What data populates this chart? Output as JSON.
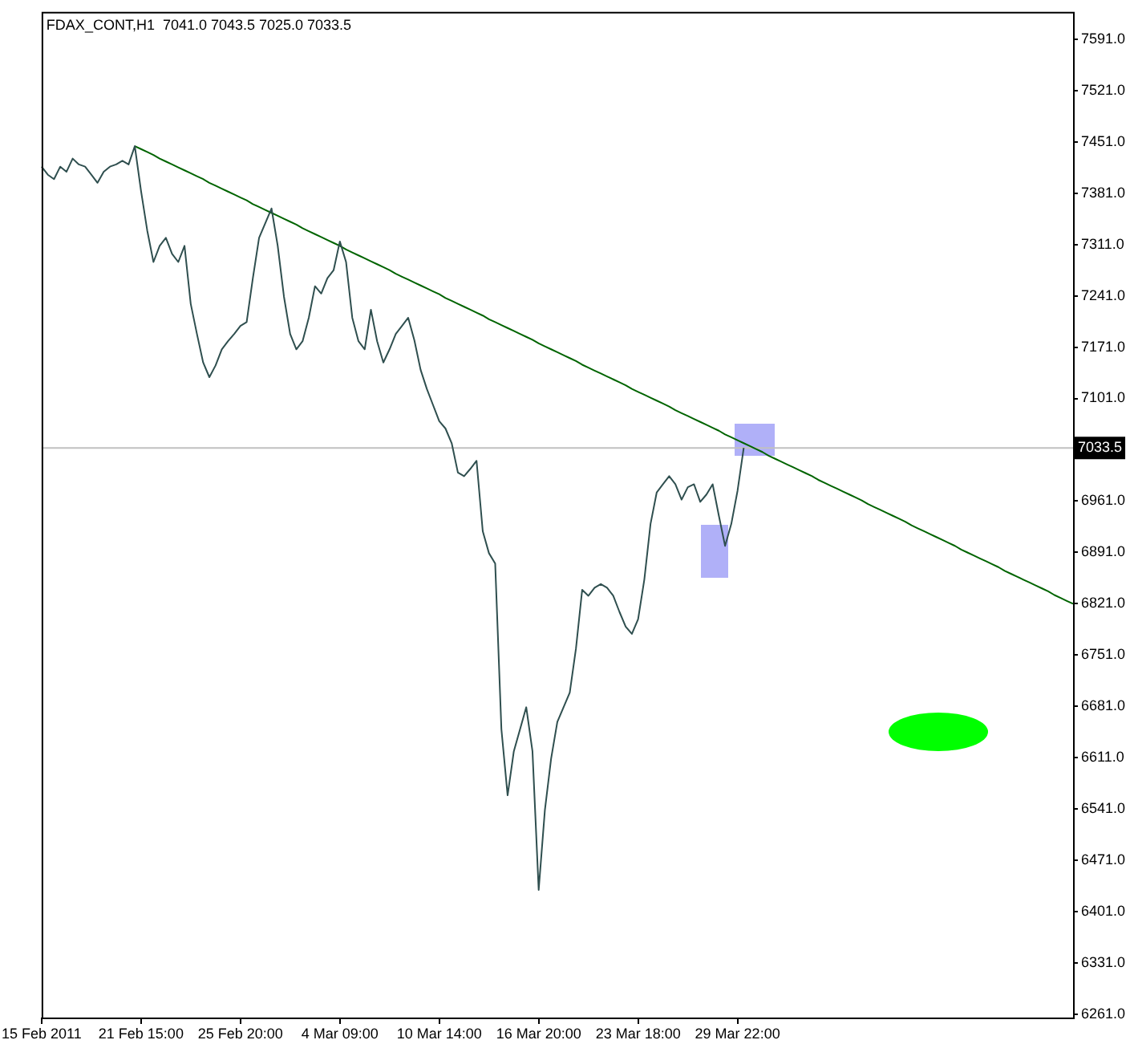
{
  "chart_data": {
    "type": "line",
    "title": "FDAX_CONT,H1  7041.0 7043.5 7025.0 7033.5",
    "marker": "none",
    "categories": [
      "15 Feb 2011",
      null,
      null,
      null,
      null,
      null,
      null,
      null,
      null,
      null,
      null,
      null,
      null,
      null,
      null,
      null,
      "21 Feb 15:00",
      null,
      null,
      null,
      null,
      null,
      null,
      null,
      null,
      null,
      null,
      null,
      null,
      null,
      null,
      null,
      "25 Feb 20:00",
      null,
      null,
      null,
      null,
      null,
      null,
      null,
      null,
      null,
      null,
      null,
      null,
      null,
      null,
      null,
      "4 Mar 09:00",
      null,
      null,
      null,
      null,
      null,
      null,
      null,
      null,
      null,
      null,
      null,
      null,
      null,
      null,
      null,
      "10 Mar 14:00",
      null,
      null,
      null,
      null,
      null,
      null,
      null,
      null,
      null,
      null,
      null,
      null,
      null,
      null,
      null,
      "16 Mar 20:00",
      null,
      null,
      null,
      null,
      null,
      null,
      null,
      null,
      null,
      null,
      null,
      null,
      null,
      null,
      null,
      "23 Mar 18:00",
      null,
      null,
      null,
      null,
      null,
      null,
      null,
      null,
      null,
      null,
      null,
      null,
      null,
      null,
      null,
      "29 Mar 22:00",
      null,
      null,
      null,
      null,
      null,
      null,
      null,
      null,
      null,
      null,
      null,
      null,
      null,
      null,
      null,
      null,
      null,
      null,
      null,
      null,
      null,
      null,
      null,
      null,
      null,
      null,
      null,
      null,
      null,
      null,
      null,
      null,
      null,
      null,
      null,
      null,
      null,
      null,
      null,
      null,
      null,
      null,
      null,
      null,
      null,
      null,
      null,
      null,
      null,
      null,
      null,
      null,
      null,
      null
    ],
    "series": [
      {
        "color": "#2f4f4f",
        "values": [
          7417,
          7406,
          7400,
          7417,
          7410,
          7428,
          7420,
          7417,
          7406,
          7395,
          7410,
          7417,
          7420,
          7425,
          7420,
          7445,
          7384,
          7330,
          7287,
          7309,
          7320,
          7298,
          7287,
          7309,
          7230,
          7189,
          7150,
          7130,
          7146,
          7168,
          7179,
          7189,
          7200,
          7205,
          7265,
          7320,
          7340,
          7360,
          7309,
          7240,
          7189,
          7168,
          7179,
          7211,
          7254,
          7244,
          7265,
          7276,
          7315,
          7287,
          7211,
          7179,
          7168,
          7222,
          7179,
          7150,
          7168,
          7189,
          7200,
          7211,
          7180,
          7140,
          7114,
          7092,
          7070,
          7060,
          7040,
          7000,
          6995,
          7005,
          7016,
          6920,
          6890,
          6876,
          6650,
          6560,
          6620,
          6650,
          6680,
          6620,
          6431,
          6540,
          6610,
          6660,
          6680,
          6700,
          6760,
          6840,
          6832,
          6843,
          6848,
          6843,
          6832,
          6810,
          6790,
          6780,
          6800,
          6854,
          6930,
          6973,
          6984,
          6995,
          6984,
          6963,
          6980,
          6984,
          6960,
          6970,
          6984,
          6941,
          6900,
          6930,
          6975,
          7033.5,
          null,
          null,
          null,
          null,
          null,
          null,
          null,
          null,
          null,
          null,
          null,
          null,
          null,
          null,
          null,
          null,
          null,
          null,
          null,
          null,
          null,
          null,
          null,
          null,
          null,
          null,
          null,
          null,
          null,
          null,
          null,
          null,
          null,
          null,
          null,
          null,
          null,
          null,
          null,
          null,
          null,
          null,
          null,
          null,
          null,
          null,
          null,
          null,
          null,
          null,
          null,
          null,
          null
        ]
      },
      {
        "type": "line",
        "color": "#006400",
        "values": [
          null,
          null,
          null,
          null,
          null,
          null,
          null,
          null,
          null,
          null,
          null,
          null,
          null,
          null,
          null,
          7445,
          7441,
          7437,
          7433,
          7428,
          7424,
          7420,
          7416,
          7412,
          7408,
          7404,
          7400,
          7395,
          7391,
          7387,
          7383,
          7379,
          7375,
          7371,
          7366,
          7362,
          7358,
          7354,
          7350,
          7346,
          7342,
          7338,
          7333,
          7329,
          7325,
          7321,
          7317,
          7313,
          7309,
          7304,
          7300,
          7296,
          7292,
          7288,
          7284,
          7280,
          7276,
          7271,
          7267,
          7263,
          7259,
          7255,
          7251,
          7247,
          7243,
          7238,
          7234,
          7230,
          7226,
          7222,
          7218,
          7214,
          7209,
          7205,
          7201,
          7197,
          7193,
          7189,
          7185,
          7181,
          7176,
          7172,
          7168,
          7164,
          7160,
          7156,
          7152,
          7147,
          7143,
          7139,
          7135,
          7131,
          7127,
          7123,
          7119,
          7114,
          7110,
          7106,
          7102,
          7098,
          7094,
          7090,
          7085,
          7081,
          7077,
          7073,
          7069,
          7065,
          7061,
          7057,
          7052,
          7048,
          7044,
          7040,
          7036,
          7032,
          7028,
          7023,
          7019,
          7015,
          7011,
          7007,
          7003,
          6999,
          6995,
          6990,
          6986,
          6982,
          6978,
          6974,
          6970,
          6966,
          6962,
          6957,
          6953,
          6949,
          6945,
          6941,
          6937,
          6933,
          6928,
          6924,
          6920,
          6916,
          6912,
          6908,
          6904,
          6900,
          6895,
          6891,
          6887,
          6883,
          6879,
          6875,
          6871,
          6866,
          6862,
          6858,
          6854,
          6850,
          6846,
          6842,
          6838,
          6833,
          6829,
          6825,
          6821
        ]
      }
    ],
    "ylim": [
      6257,
      7628
    ],
    "yticks": [
      {
        "value": 7591,
        "label": "7591.0"
      },
      {
        "value": 7521,
        "label": "7521.0"
      },
      {
        "value": 7451,
        "label": "7451.0"
      },
      {
        "value": 7381,
        "label": "7381.0"
      },
      {
        "value": 7311,
        "label": "7311.0"
      },
      {
        "value": 7241,
        "label": "7241.0"
      },
      {
        "value": 7171,
        "label": "7171.0"
      },
      {
        "value": 7101,
        "label": "7101.0"
      },
      {
        "value": 6961,
        "label": "6961.0"
      },
      {
        "value": 6891,
        "label": "6891.0"
      },
      {
        "value": 6821,
        "label": "6821.0"
      },
      {
        "value": 6751,
        "label": "6751.0"
      },
      {
        "value": 6681,
        "label": "6681.0"
      },
      {
        "value": 6611,
        "label": "6611.0"
      },
      {
        "value": 6541,
        "label": "6541.0"
      },
      {
        "value": 6471,
        "label": "6471.0"
      },
      {
        "value": 6401,
        "label": "6401.0"
      },
      {
        "value": 6331,
        "label": "6331.0"
      },
      {
        "value": 6261,
        "label": "6261.0"
      }
    ],
    "ref_lines": [
      {
        "axis": "y",
        "value": 7033.5,
        "label": "7033.5",
        "color": "#c0c0c0"
      }
    ]
  }
}
